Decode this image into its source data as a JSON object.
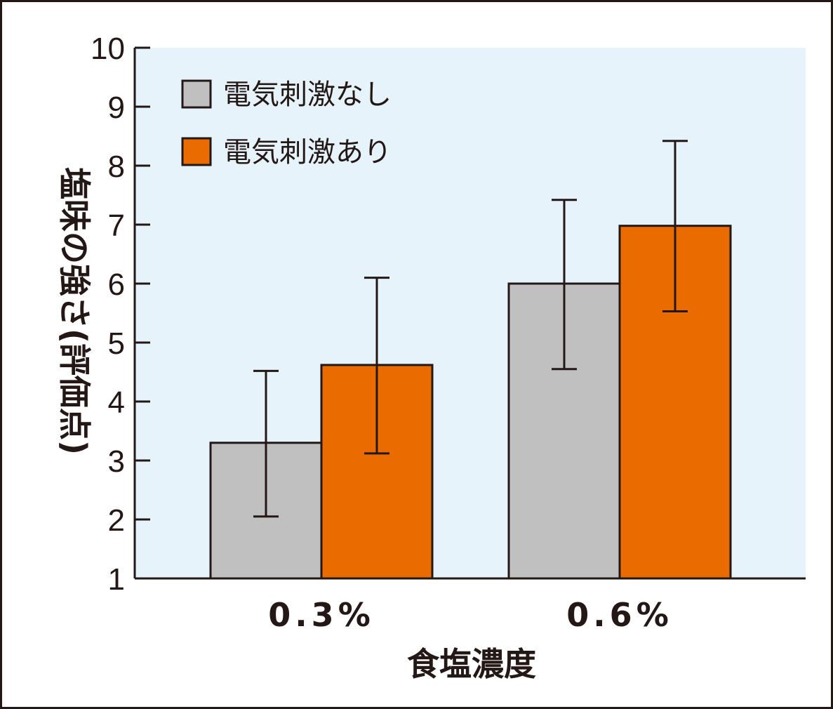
{
  "chart_data": {
    "type": "bar",
    "xlabel": "食塩濃度",
    "ylabel": "塩味の強さ(評価点)",
    "ylim": [
      1,
      10
    ],
    "yticks": [
      "1",
      "2",
      "3",
      "4",
      "5",
      "6",
      "7",
      "8",
      "9",
      "10"
    ],
    "categories": [
      "0.3%",
      "0.6%"
    ],
    "legend_position": "top-left",
    "plot_background": "#e6f3fb",
    "series": [
      {
        "name": "電気刺激なし",
        "color": "#c0c0c0",
        "values": [
          3.3,
          6.0
        ],
        "error_low": [
          2.05,
          4.55
        ],
        "error_high": [
          4.52,
          7.42
        ]
      },
      {
        "name": "電気刺激あり",
        "color": "#ea6c00",
        "values": [
          4.62,
          6.98
        ],
        "error_low": [
          3.12,
          5.53
        ],
        "error_high": [
          6.1,
          8.42
        ]
      }
    ]
  }
}
